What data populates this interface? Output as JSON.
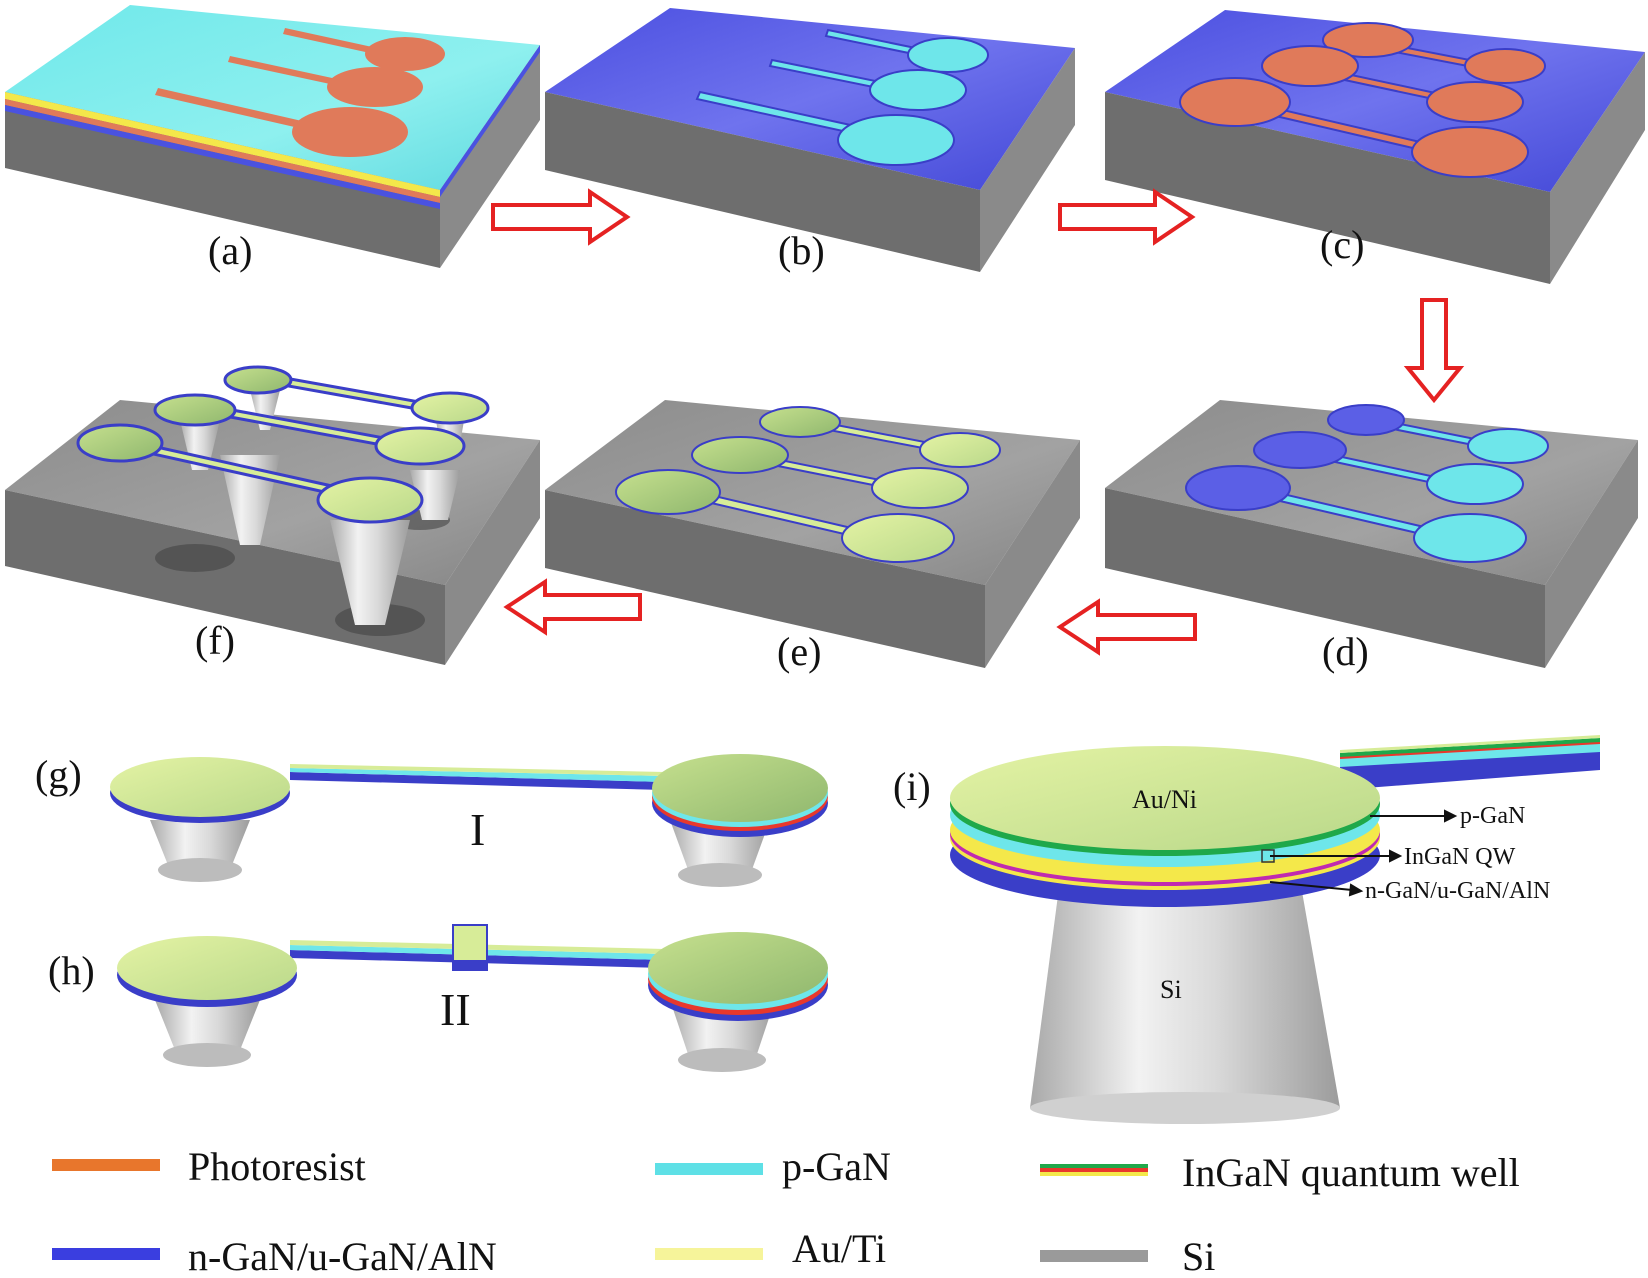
{
  "panels": {
    "a": "(a)",
    "b": "(b)",
    "c": "(c)",
    "d": "(d)",
    "e": "(e)",
    "f": "(f)",
    "g": "(g)",
    "h": "(h)",
    "i": "(i)"
  },
  "device_labels": {
    "type1": "I",
    "type2": "II"
  },
  "closeup": {
    "top_metal": "Au/Ni",
    "pedestal": "Si",
    "arrows": [
      "p-GaN",
      "InGaN QW",
      "n-GaN/u-GaN/AlN"
    ]
  },
  "legend": [
    {
      "label": "Photoresist",
      "colors": [
        "#e8762c"
      ]
    },
    {
      "label": "p-GaN",
      "colors": [
        "#5ee0e6"
      ]
    },
    {
      "label": "InGaN quantum well",
      "colors": [
        "#1fa84a",
        "#e8382c",
        "#f4e84a"
      ]
    },
    {
      "label": "n-GaN/u-GaN/AlN",
      "colors": [
        "#3a3ee0"
      ]
    },
    {
      "label": "Au/Ti",
      "colors": [
        "#f6f49a"
      ]
    },
    {
      "label": "Si",
      "colors": [
        "#9a9a9a"
      ]
    }
  ],
  "colors": {
    "photoresist": "#e07a5a",
    "p_gan": "#6ee6ea",
    "n_gan": "#4a52e0",
    "metal": "#d7ec98",
    "si_top": "#8f8f8f",
    "si_side": "#6e6e6e",
    "arrow": "#e52222"
  }
}
